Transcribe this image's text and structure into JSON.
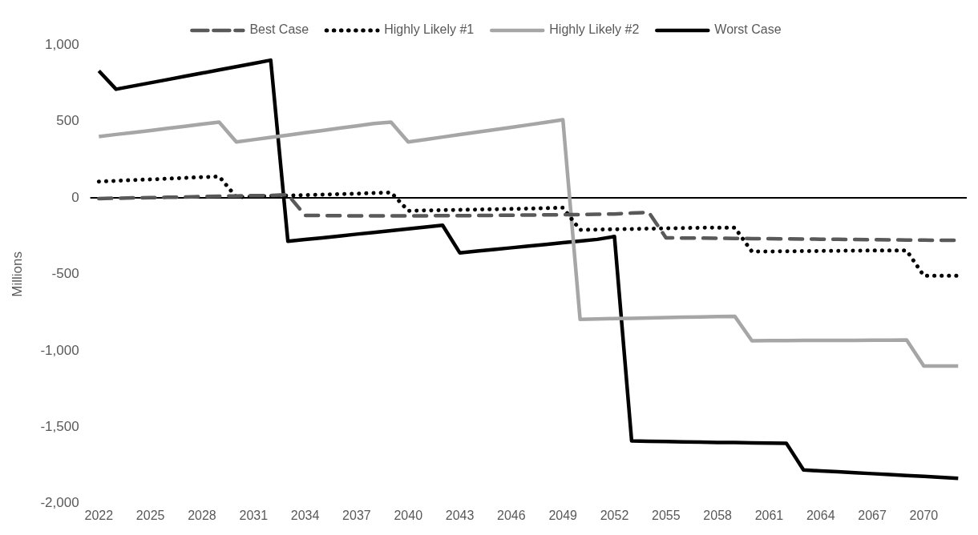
{
  "chart_data": {
    "type": "line",
    "ylabel": "Millions",
    "categories": [
      "2022",
      null,
      null,
      "2025",
      null,
      null,
      "2028",
      null,
      null,
      "2031",
      null,
      null,
      "2034",
      null,
      null,
      "2037",
      null,
      null,
      "2040",
      null,
      null,
      "2043",
      null,
      null,
      "2046",
      null,
      null,
      "2049",
      null,
      null,
      "2052",
      null,
      null,
      "2055",
      null,
      null,
      "2058",
      null,
      null,
      "2061",
      null,
      null,
      "2064",
      null,
      null,
      "2067",
      null,
      null,
      "2070",
      null,
      null
    ],
    "series": [
      {
        "name": "Best Case",
        "color": "#595959",
        "line_style": "dashed",
        "values": [
          -5,
          -3,
          -1,
          1,
          3,
          5,
          8,
          10,
          12,
          14,
          15,
          20,
          -115,
          -116,
          -117,
          -118,
          -118,
          -118,
          -118,
          -118,
          -117,
          -117,
          -116,
          -115,
          -114,
          -113,
          -112,
          -111,
          -110,
          -108,
          -106,
          -100,
          -95,
          -262,
          -263,
          -264,
          -265,
          -266,
          -267,
          -268,
          -269,
          -270,
          -271,
          -272,
          -273,
          -274,
          -275,
          -276,
          -277,
          -278,
          -278
        ]
      },
      {
        "name": "Highly Likely #1",
        "color": "#000000",
        "line_style": "dotted",
        "values": [
          106,
          111,
          116,
          120,
          125,
          130,
          135,
          139,
          4,
          8,
          12,
          15,
          18,
          21,
          24,
          27,
          31,
          35,
          -85,
          -83,
          -81,
          -79,
          -77,
          -75,
          -73,
          -71,
          -68,
          -65,
          -210,
          -208,
          -206,
          -204,
          -202,
          -200,
          -198,
          -196,
          -195,
          -195,
          -352,
          -351,
          -350,
          -349,
          -348,
          -347,
          -346,
          -345,
          -345,
          -345,
          -510,
          -510,
          -510
        ]
      },
      {
        "name": "Highly Likely #2",
        "color": "#a6a6a6",
        "line_style": "solid",
        "values": [
          400,
          414,
          427,
          440,
          454,
          467,
          481,
          495,
          365,
          380,
          395,
          410,
          425,
          440,
          455,
          470,
          485,
          495,
          365,
          381,
          397,
          413,
          429,
          445,
          461,
          477,
          493,
          510,
          -795,
          -793,
          -790,
          -788,
          -786,
          -783,
          -781,
          -779,
          -777,
          -775,
          -935,
          -934,
          -934,
          -933,
          -933,
          -932,
          -932,
          -931,
          -931,
          -930,
          -1100,
          -1100,
          -1100
        ]
      },
      {
        "name": "Worst Case",
        "color": "#000000",
        "line_style": "solid",
        "values": [
          830,
          710,
          731,
          752,
          773,
          794,
          815,
          836,
          857,
          878,
          900,
          -285,
          -273,
          -262,
          -250,
          -238,
          -227,
          -215,
          -203,
          -192,
          -180,
          -360,
          -349,
          -338,
          -327,
          -316,
          -305,
          -294,
          -283,
          -272,
          -253,
          -1590,
          -1592,
          -1594,
          -1596,
          -1598,
          -1600,
          -1601,
          -1603,
          -1604,
          -1605,
          -1780,
          -1786,
          -1792,
          -1798,
          -1804,
          -1810,
          -1816,
          -1822,
          -1828,
          -1835
        ]
      }
    ],
    "ylim": [
      -2000,
      1000
    ],
    "yticks": [
      {
        "value": -2000,
        "label": "-2,000"
      },
      {
        "value": -1500,
        "label": "-1,500"
      },
      {
        "value": -1000,
        "label": "-1,000"
      },
      -500,
      0,
      500,
      {
        "value": 1000,
        "label": "1,000"
      }
    ],
    "ref_lines": [
      {
        "axis": "y",
        "value": 0,
        "color": "#000000"
      }
    ],
    "grid": false,
    "legend": "top",
    "marker": "none"
  }
}
